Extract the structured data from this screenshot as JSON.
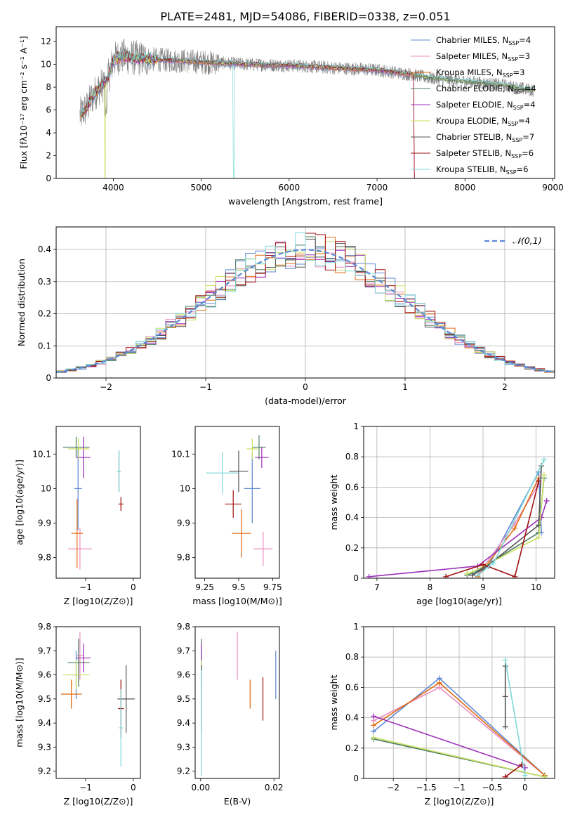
{
  "figure_title": "PLATE=2481, MJD=54086, FIBERID=0338, z=0.051",
  "series_styles": [
    {
      "name": "Chabrier MILES",
      "color": "#5b88d4"
    },
    {
      "name": "Salpeter MILES",
      "color": "#e88cc0"
    },
    {
      "name": "Kroupa MILES",
      "color": "#e06a10"
    },
    {
      "name": "Chabrier ELODIE",
      "color": "#4c7c60"
    },
    {
      "name": "Salpeter ELODIE",
      "color": "#9b2fb8"
    },
    {
      "name": "Kroupa ELODIE",
      "color": "#c8e060"
    },
    {
      "name": "Chabrier STELIB",
      "color": "#555555"
    },
    {
      "name": "Salpeter STELIB",
      "color": "#a01010"
    },
    {
      "name": "Kroupa STELIB",
      "color": "#80d8d8"
    }
  ],
  "data_color": "#808080",
  "chart_data": [
    {
      "id": "spectrum",
      "type": "line",
      "title": "PLATE=2481, MJD=54086, FIBERID=0338, z=0.051",
      "xlabel": "wavelength [Angstrom, rest frame]",
      "ylabel": "Flux [fλ10⁻¹⁷ erg cm⁻² s⁻¹ A⁻¹]",
      "xlim": [
        3350,
        9020
      ],
      "ylim": [
        0,
        13.3
      ],
      "xticks": [
        4000,
        5000,
        6000,
        7000,
        8000,
        9000
      ],
      "yticks": [
        0,
        2,
        4,
        6,
        8,
        10,
        12
      ],
      "legend_position": "right",
      "legend": [
        {
          "label": "Chabrier MILES, N",
          "sub": "SSP",
          "suffix": "=4"
        },
        {
          "label": "Salpeter MILES, N",
          "sub": "SSP",
          "suffix": "=3"
        },
        {
          "label": "Kroupa MILES, N",
          "sub": "SSP",
          "suffix": "=3"
        },
        {
          "label": "Chabrier ELODIE, N",
          "sub": "SSP",
          "suffix": "=4"
        },
        {
          "label": "Salpeter ELODIE, N",
          "sub": "SSP",
          "suffix": "=4"
        },
        {
          "label": "Kroupa ELODIE, N",
          "sub": "SSP",
          "suffix": "=4"
        },
        {
          "label": "Chabrier STELIB, N",
          "sub": "SSP",
          "suffix": "=7"
        },
        {
          "label": "Salpeter STELIB, N",
          "sub": "SSP",
          "suffix": "=6"
        },
        {
          "label": "Kroupa STELIB, N",
          "sub": "SSP",
          "suffix": "=6"
        }
      ],
      "continuum_shape": {
        "x": [
          3620,
          3650,
          3700,
          3750,
          3800,
          3850,
          3900,
          3950,
          4000,
          4050,
          4100,
          4200,
          4300,
          4500,
          4800,
          5000,
          5500,
          6000,
          6500,
          7000,
          7400,
          7600,
          8000,
          8400,
          8780
        ],
        "y": [
          5.5,
          5.8,
          6.2,
          7.0,
          7.6,
          8.0,
          8.4,
          9.0,
          10.4,
          10.6,
          10.7,
          10.6,
          10.5,
          10.4,
          10.3,
          10.2,
          10.0,
          9.9,
          9.7,
          9.5,
          9.1,
          8.8,
          8.5,
          8.2,
          7.7
        ]
      },
      "data_xrange": [
        3620,
        8780
      ]
    },
    {
      "id": "residuals",
      "type": "step",
      "xlabel": "(data-model)/error",
      "ylabel": "Normed distribution",
      "xlim": [
        -2.5,
        2.5
      ],
      "ylim": [
        0,
        0.47
      ],
      "xticks": [
        -2,
        -1,
        0,
        1,
        2
      ],
      "yticks": [
        0.0,
        0.1,
        0.2,
        0.3,
        0.4
      ],
      "grid": true,
      "bins": 50,
      "reference": {
        "label": "𝒩(0,1)",
        "mean": 0,
        "sigma": 1,
        "style": "dashed",
        "color": "#5b88d4"
      },
      "legend_position": "top-right"
    },
    {
      "id": "age-vs-Z",
      "type": "errorbar",
      "xlabel": "Z [log10(Z/Z⊙)]",
      "ylabel": "age  [log10(age/yr)]",
      "xlim": [
        -1.62,
        0.15
      ],
      "ylim": [
        9.74,
        10.18
      ],
      "xticks": [
        -1,
        0
      ],
      "yticks": [
        9.8,
        9.9,
        10.0,
        10.1
      ],
      "points": [
        {
          "s": 0,
          "x": -1.16,
          "y": 10.0,
          "xerr": 0.08,
          "yerr": 0.12
        },
        {
          "s": 1,
          "x": -1.12,
          "y": 9.825,
          "xerr": 0.25,
          "yerr": 0.06
        },
        {
          "s": 2,
          "x": -1.18,
          "y": 9.87,
          "xerr": 0.12,
          "yerr": 0.1
        },
        {
          "s": 3,
          "x": -1.2,
          "y": 10.12,
          "xerr": 0.28,
          "yerr": 0.03
        },
        {
          "s": 4,
          "x": -1.05,
          "y": 10.09,
          "xerr": 0.15,
          "yerr": 0.06
        },
        {
          "s": 5,
          "x": -1.15,
          "y": 10.115,
          "xerr": 0.22,
          "yerr": 0.03
        },
        {
          "s": 6,
          "x": -0.3,
          "y": 10.05,
          "xerr": 0.03,
          "yerr": 0.06
        },
        {
          "s": 7,
          "x": -0.26,
          "y": 9.955,
          "xerr": 0.05,
          "yerr": 0.02
        },
        {
          "s": 8,
          "x": -0.3,
          "y": 10.05,
          "xerr": 0.04,
          "yerr": 0.06
        }
      ]
    },
    {
      "id": "age-vs-mass",
      "type": "errorbar",
      "xlabel": "mass [log10(M/M⊙)]",
      "ylabel": "",
      "xlim": [
        9.18,
        9.8
      ],
      "ylim": [
        9.74,
        10.18
      ],
      "xticks": [
        9.25,
        9.5,
        9.75
      ],
      "yticks": [
        9.8,
        9.9,
        10.0,
        10.1
      ],
      "points": [
        {
          "s": 0,
          "x": 9.6,
          "y": 10.0,
          "xerr": 0.06,
          "yerr": 0.1
        },
        {
          "s": 1,
          "x": 9.68,
          "y": 9.825,
          "xerr": 0.07,
          "yerr": 0.05
        },
        {
          "s": 2,
          "x": 9.52,
          "y": 9.87,
          "xerr": 0.07,
          "yerr": 0.07
        },
        {
          "s": 3,
          "x": 9.65,
          "y": 10.12,
          "xerr": 0.05,
          "yerr": 0.035
        },
        {
          "s": 4,
          "x": 9.67,
          "y": 10.09,
          "xerr": 0.05,
          "yerr": 0.03
        },
        {
          "s": 5,
          "x": 9.6,
          "y": 10.115,
          "xerr": 0.04,
          "yerr": 0.03
        },
        {
          "s": 6,
          "x": 9.5,
          "y": 10.05,
          "xerr": 0.07,
          "yerr": 0.06
        },
        {
          "s": 7,
          "x": 9.46,
          "y": 9.955,
          "xerr": 0.06,
          "yerr": 0.04
        },
        {
          "s": 8,
          "x": 9.38,
          "y": 10.045,
          "xerr": 0.12,
          "yerr": 0.06
        }
      ]
    },
    {
      "id": "weights-vs-age",
      "type": "line",
      "xlabel": "age  [log10(age/yr)]",
      "ylabel": "mass weight",
      "xlim": [
        6.75,
        10.35
      ],
      "ylim": [
        0,
        1.0
      ],
      "xticks": [
        7,
        8,
        9,
        10
      ],
      "yticks": [
        0.0,
        0.2,
        0.4,
        0.6,
        0.8,
        1.0
      ],
      "grid": true,
      "series": [
        {
          "s": 0,
          "x": [
            8.8,
            9.1,
            10.05,
            10.1
          ],
          "y": [
            0.03,
            0.08,
            0.7,
            0.3
          ]
        },
        {
          "s": 1,
          "x": [
            8.9,
            9.6,
            10.05
          ],
          "y": [
            0.02,
            0.36,
            0.62
          ]
        },
        {
          "s": 2,
          "x": [
            8.9,
            9.6,
            10.05
          ],
          "y": [
            0.01,
            0.33,
            0.66
          ]
        },
        {
          "s": 3,
          "x": [
            8.7,
            8.9,
            10.05,
            10.15
          ],
          "y": [
            0.02,
            0.05,
            0.3,
            0.66
          ]
        },
        {
          "s": 4,
          "x": [
            6.85,
            8.9,
            10.1,
            10.2
          ],
          "y": [
            0.01,
            0.08,
            0.4,
            0.51
          ]
        },
        {
          "s": 5,
          "x": [
            8.7,
            8.8,
            10.05,
            10.15
          ],
          "y": [
            0.03,
            0.04,
            0.27,
            0.68
          ]
        },
        {
          "s": 6,
          "x": [
            8.8,
            9.0,
            10.05,
            10.1
          ],
          "y": [
            0.02,
            0.06,
            0.35,
            0.74
          ]
        },
        {
          "s": 7,
          "x": [
            8.3,
            9.0,
            9.6,
            10.05
          ],
          "y": [
            0.01,
            0.09,
            0.01,
            0.64
          ]
        },
        {
          "s": 8,
          "x": [
            8.9,
            9.2,
            10.15
          ],
          "y": [
            0.02,
            0.1,
            0.78
          ]
        }
      ]
    },
    {
      "id": "mass-vs-Z",
      "type": "errorbar",
      "xlabel": "Z [log10(Z/Z⊙)]",
      "ylabel": "mass [log10(M/M⊙)]",
      "xlim": [
        -1.62,
        0.15
      ],
      "ylim": [
        9.17,
        9.8
      ],
      "xticks": [
        -1,
        0
      ],
      "yticks": [
        9.2,
        9.3,
        9.4,
        9.5,
        9.6,
        9.7,
        9.8
      ],
      "points": [
        {
          "s": 0,
          "x": -1.2,
          "y": 9.6,
          "xerr": 0.08,
          "yerr": 0.1
        },
        {
          "s": 1,
          "x": -1.12,
          "y": 9.68,
          "xerr": 0.06,
          "yerr": 0.1
        },
        {
          "s": 2,
          "x": -1.3,
          "y": 9.52,
          "xerr": 0.22,
          "yerr": 0.06
        },
        {
          "s": 3,
          "x": -1.15,
          "y": 9.65,
          "xerr": 0.23,
          "yerr": 0.1
        },
        {
          "s": 4,
          "x": -1.05,
          "y": 9.67,
          "xerr": 0.15,
          "yerr": 0.06
        },
        {
          "s": 5,
          "x": -1.2,
          "y": 9.6,
          "xerr": 0.28,
          "yerr": 0.06
        },
        {
          "s": 6,
          "x": -0.15,
          "y": 9.5,
          "xerr": 0.18,
          "yerr": 0.14
        },
        {
          "s": 7,
          "x": -0.26,
          "y": 9.46,
          "xerr": 0.06,
          "yerr": 0.12
        },
        {
          "s": 8,
          "x": -0.26,
          "y": 9.38,
          "xerr": 0.04,
          "yerr": 0.16
        }
      ]
    },
    {
      "id": "mass-vs-EBV",
      "type": "errorbar",
      "xlabel": "E(B-V)",
      "ylabel": "",
      "xlim": [
        -0.0015,
        0.0215
      ],
      "ylim": [
        9.17,
        9.8
      ],
      "xticks": [
        0.0,
        0.02
      ],
      "xtick_labels": [
        "0.00",
        "0.02"
      ],
      "yticks": [
        9.2,
        9.3,
        9.4,
        9.5,
        9.6,
        9.7,
        9.8
      ],
      "points": [
        {
          "s": 0,
          "x": 0.0205,
          "y": 9.6,
          "xerr": 0.0,
          "yerr": 0.1
        },
        {
          "s": 1,
          "x": 0.01,
          "y": 9.68,
          "xerr": 0.0,
          "yerr": 0.1
        },
        {
          "s": 2,
          "x": 0.0135,
          "y": 9.52,
          "xerr": 0.0,
          "yerr": 0.06
        },
        {
          "s": 3,
          "x": 0.0002,
          "y": 9.65,
          "xerr": 0.0,
          "yerr": 0.1
        },
        {
          "s": 4,
          "x": 0.0002,
          "y": 9.67,
          "xerr": 0.0,
          "yerr": 0.06
        },
        {
          "s": 5,
          "x": 0.0002,
          "y": 9.6,
          "xerr": 0.0,
          "yerr": 0.06
        },
        {
          "s": 6,
          "x": 0.0002,
          "y": 9.5,
          "xerr": 0.0,
          "yerr": 0.14
        },
        {
          "s": 7,
          "x": 0.017,
          "y": 9.5,
          "xerr": 0.0,
          "yerr": 0.09
        },
        {
          "s": 8,
          "x": 0.0002,
          "y": 9.4,
          "xerr": 0.0,
          "yerr": 0.22
        }
      ]
    },
    {
      "id": "weights-vs-Z",
      "type": "line",
      "xlabel": "Z [log10(Z/Z⊙)]",
      "ylabel": "mass weight",
      "xlim": [
        -2.45,
        0.45
      ],
      "ylim": [
        0,
        1.0
      ],
      "xticks": [
        -2.0,
        -1.5,
        -1.0,
        -0.5,
        0.0
      ],
      "yticks": [
        0.0,
        0.2,
        0.4,
        0.6,
        0.8,
        1.0
      ],
      "grid": true,
      "series": [
        {
          "s": 0,
          "x": [
            -2.3,
            -1.3,
            0.3
          ],
          "y": [
            0.31,
            0.66,
            0.02
          ]
        },
        {
          "s": 1,
          "x": [
            -2.3,
            -1.3,
            0.3
          ],
          "y": [
            0.38,
            0.6,
            0.02
          ]
        },
        {
          "s": 2,
          "x": [
            -2.3,
            -1.3,
            0.3
          ],
          "y": [
            0.35,
            0.63,
            0.02
          ]
        },
        {
          "s": 3,
          "x": [
            -2.3,
            0.3
          ],
          "y": [
            0.26,
            0.01
          ]
        },
        {
          "s": 4,
          "x": [
            -2.3,
            0.0
          ],
          "y": [
            0.41,
            0.07
          ]
        },
        {
          "s": 5,
          "x": [
            -2.3,
            0.3
          ],
          "y": [
            0.27,
            0.01
          ]
        },
        {
          "s": 6,
          "x": [
            -0.3,
            -0.3,
            -0.3
          ],
          "y": [
            0.74,
            0.54,
            0.34
          ]
        },
        {
          "s": 7,
          "x": [
            -0.3,
            -0.05,
            -0.3
          ],
          "y": [
            0.01,
            0.09,
            0.01
          ]
        },
        {
          "s": 8,
          "x": [
            -0.3,
            0.0
          ],
          "y": [
            0.78,
            0.02
          ]
        }
      ]
    }
  ]
}
